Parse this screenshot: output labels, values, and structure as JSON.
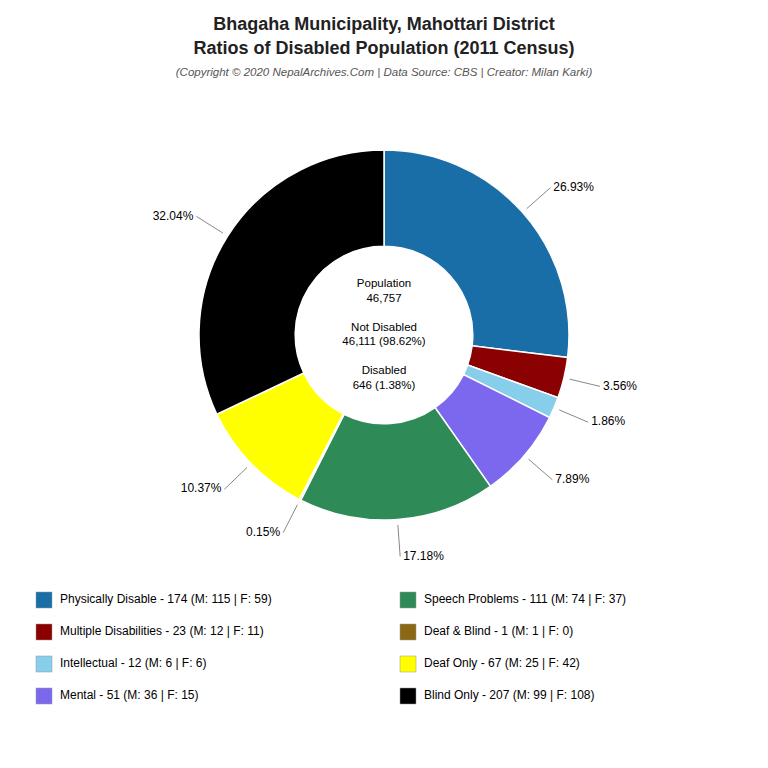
{
  "chart_data": {
    "type": "pie",
    "title": "Bhagaha Municipality, Mahottari District\nRatios of Disabled Population (2011 Census)",
    "subtitle": "(Copyright © 2020 NepalArchives.Com | Data Source: CBS | Creator: Milan Karki)",
    "categories": [
      "Physically Disable - 174 (M: 115 | F: 59)",
      "Multiple Disabilities - 23 (M: 12 | F: 11)",
      "Intellectual - 12 (M: 6 | F: 6)",
      "Mental - 51 (M: 36 | F: 15)",
      "Speech Problems - 111 (M: 74 | F: 37)",
      "Deaf & Blind - 1 (M: 1 | F: 0)",
      "Deaf Only - 67 (M: 25 | F: 42)",
      "Blind Only - 207 (M: 99 | F: 108)"
    ],
    "values": [
      26.93,
      3.56,
      1.86,
      7.89,
      17.18,
      0.15,
      10.37,
      32.04
    ],
    "value_labels": [
      "26.93%",
      "3.56%",
      "1.86%",
      "7.89%",
      "17.18%",
      "0.15%",
      "10.37%",
      "32.04%"
    ],
    "colors": [
      "#1a6ea8",
      "#8b0000",
      "#87ceeb",
      "#7b68ee",
      "#2e8b57",
      "#8B6914",
      "#ffff00",
      "#000000"
    ],
    "annotations": [
      "Population\n46,757\n\nNot Disabled\n46,111 (98.62%)\n\nDisabled\n646 (1.38%)"
    ],
    "data_labels": true,
    "legend": "bottom"
  }
}
